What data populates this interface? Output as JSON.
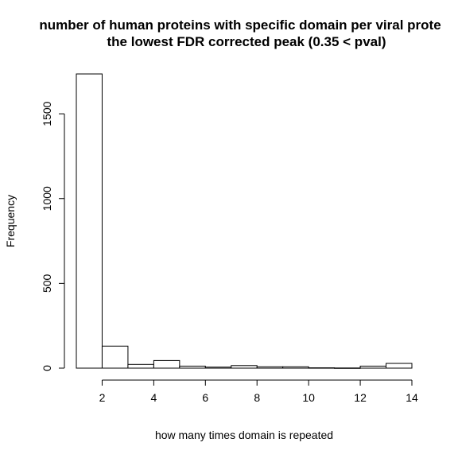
{
  "chart_data": {
    "type": "bar",
    "title_line1": "number of human proteins with specific domain per viral prote",
    "title_line2": "the lowest FDR corrected peak (0.35 < pval)",
    "xlabel": "how many times domain is repeated",
    "ylabel": "Frequency",
    "xlim": [
      1,
      14
    ],
    "ylim": [
      0,
      1735
    ],
    "x_ticks": [
      2,
      4,
      6,
      8,
      10,
      12,
      14
    ],
    "y_ticks": [
      0,
      500,
      1000,
      1500
    ],
    "bins": [
      {
        "x0": 1,
        "x1": 2,
        "value": 1735
      },
      {
        "x0": 2,
        "x1": 3,
        "value": 130
      },
      {
        "x0": 3,
        "x1": 4,
        "value": 22
      },
      {
        "x0": 4,
        "x1": 5,
        "value": 45
      },
      {
        "x0": 5,
        "x1": 6,
        "value": 12
      },
      {
        "x0": 6,
        "x1": 7,
        "value": 6
      },
      {
        "x0": 7,
        "x1": 8,
        "value": 15
      },
      {
        "x0": 8,
        "x1": 9,
        "value": 8
      },
      {
        "x0": 9,
        "x1": 10,
        "value": 8
      },
      {
        "x0": 10,
        "x1": 11,
        "value": 2
      },
      {
        "x0": 11,
        "x1": 12,
        "value": 1
      },
      {
        "x0": 12,
        "x1": 13,
        "value": 12
      },
      {
        "x0": 13,
        "x1": 14,
        "value": 28
      }
    ]
  }
}
